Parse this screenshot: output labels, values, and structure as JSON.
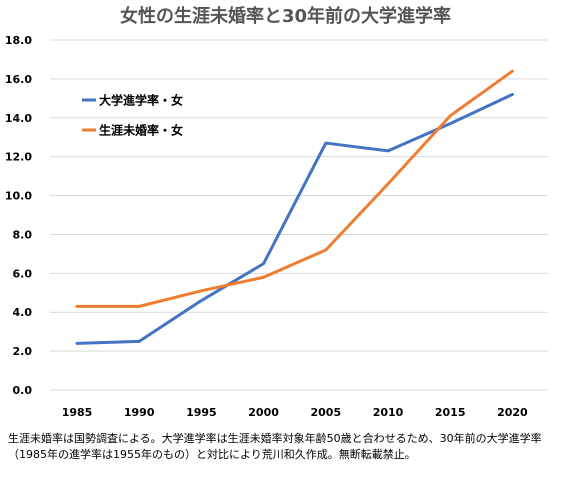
{
  "chart_data": {
    "type": "line",
    "title": "女性の生涯未婚率と30年前の大学進学率",
    "xlabel": "",
    "ylabel": "",
    "x": [
      1985,
      1990,
      1995,
      2000,
      2005,
      2010,
      2015,
      2020
    ],
    "ylim": [
      0,
      18
    ],
    "yticks": [
      "0.0",
      "2.0",
      "4.0",
      "6.0",
      "8.0",
      "10.0",
      "12.0",
      "14.0",
      "16.0",
      "18.0"
    ],
    "xticks": [
      "1985",
      "1990",
      "1995",
      "2000",
      "2005",
      "2010",
      "2015",
      "2020"
    ],
    "grid": true,
    "legend_position": "upper-left",
    "series": [
      {
        "name": "大学進学率・女",
        "color": "#4472C4",
        "values": [
          2.4,
          2.5,
          4.6,
          6.5,
          12.7,
          12.3,
          13.7,
          15.2
        ]
      },
      {
        "name": "生涯未婚率・女",
        "color": "#ED7D31",
        "values": [
          4.3,
          4.3,
          5.1,
          5.8,
          7.2,
          10.6,
          14.1,
          16.4
        ]
      }
    ]
  },
  "footnote": "生涯未婚率は国勢調査による。大学進学率は生涯未婚率対象年齢50歳と合わせるため、30年前の大学進学率（1985年の進学率は1955年のもの）と対比により荒川和久作成。無断転載禁止。"
}
